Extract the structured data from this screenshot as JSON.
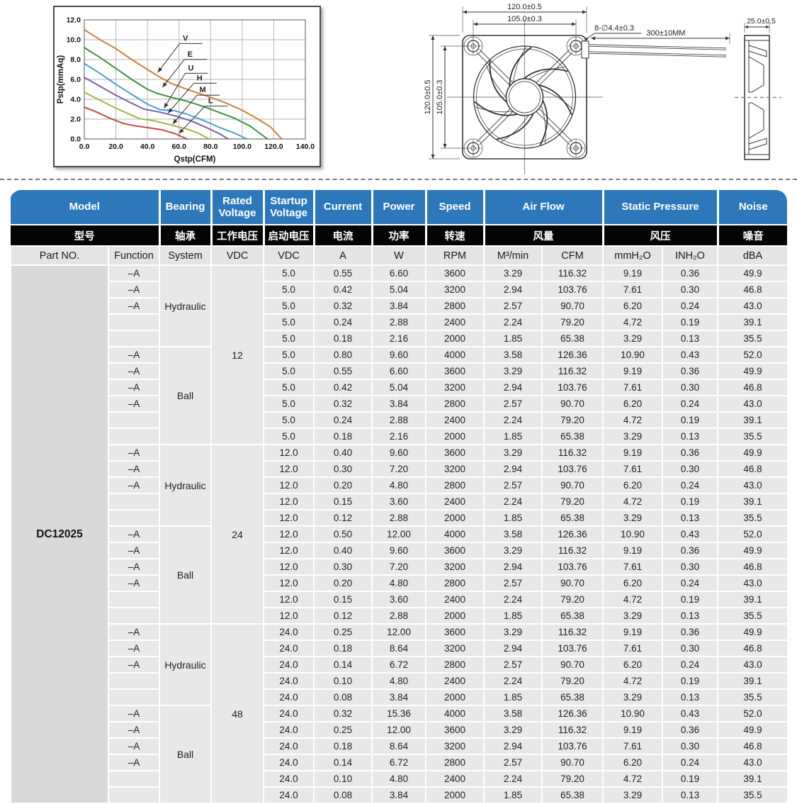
{
  "chart_data": {
    "type": "line",
    "title": "",
    "xlabel": "Qstp(CFM)",
    "ylabel": "Pstp(mmAq)",
    "xlim": [
      0,
      140
    ],
    "ylim": [
      0,
      12
    ],
    "grid": true,
    "xticks": [
      "0.0",
      "20.0",
      "40.0",
      "60.0",
      "80.0",
      "100.0",
      "120.0",
      "140.0"
    ],
    "yticks": [
      "0.0",
      "2.0",
      "4.0",
      "6.0",
      "8.0",
      "10.0",
      "12.0"
    ],
    "series": [
      {
        "name": "V",
        "color": "#d07f3a",
        "points": [
          [
            0,
            11.0
          ],
          [
            10,
            10.0
          ],
          [
            20,
            9.1
          ],
          [
            30,
            8.0
          ],
          [
            40,
            7.0
          ],
          [
            47,
            6.3
          ],
          [
            55,
            5.6
          ],
          [
            65,
            5.0
          ],
          [
            80,
            4.2
          ],
          [
            90,
            3.6
          ],
          [
            100,
            2.9
          ],
          [
            110,
            2.0
          ],
          [
            118,
            1.2
          ],
          [
            125,
            0
          ]
        ]
      },
      {
        "name": "E",
        "color": "#3f8f44",
        "points": [
          [
            0,
            9.2
          ],
          [
            10,
            8.2
          ],
          [
            20,
            7.1
          ],
          [
            30,
            6.0
          ],
          [
            40,
            5.0
          ],
          [
            46,
            4.6
          ],
          [
            55,
            4.2
          ],
          [
            65,
            3.8
          ],
          [
            75,
            3.3
          ],
          [
            85,
            2.7
          ],
          [
            95,
            2.1
          ],
          [
            105,
            1.3
          ],
          [
            116,
            0
          ]
        ]
      },
      {
        "name": "U",
        "color": "#4aa0d6",
        "points": [
          [
            0,
            7.6
          ],
          [
            10,
            6.6
          ],
          [
            20,
            5.5
          ],
          [
            30,
            4.5
          ],
          [
            40,
            3.5
          ],
          [
            48,
            2.95
          ],
          [
            57,
            2.85
          ],
          [
            65,
            2.5
          ],
          [
            75,
            1.9
          ],
          [
            85,
            1.2
          ],
          [
            95,
            0.6
          ],
          [
            103,
            0
          ]
        ]
      },
      {
        "name": "H",
        "color": "#7a5fa8",
        "points": [
          [
            0,
            6.2
          ],
          [
            10,
            5.3
          ],
          [
            20,
            4.4
          ],
          [
            30,
            3.6
          ],
          [
            38,
            3.0
          ],
          [
            48,
            2.7
          ],
          [
            58,
            2.3
          ],
          [
            68,
            1.8
          ],
          [
            78,
            1.1
          ],
          [
            86,
            0.5
          ],
          [
            91,
            0
          ]
        ]
      },
      {
        "name": "M",
        "color": "#a2b545",
        "points": [
          [
            0,
            4.7
          ],
          [
            10,
            3.9
          ],
          [
            20,
            3.1
          ],
          [
            30,
            2.4
          ],
          [
            35,
            2.05
          ],
          [
            45,
            1.8
          ],
          [
            55,
            1.4
          ],
          [
            65,
            1.0
          ],
          [
            72,
            0.6
          ],
          [
            79,
            0
          ]
        ]
      },
      {
        "name": "L",
        "color": "#bf4a45",
        "points": [
          [
            0,
            3.2
          ],
          [
            8,
            2.7
          ],
          [
            16,
            2.1
          ],
          [
            25,
            1.55
          ],
          [
            33,
            1.3
          ],
          [
            42,
            1.1
          ],
          [
            50,
            0.9
          ],
          [
            58,
            0.5
          ],
          [
            65,
            0
          ]
        ]
      }
    ],
    "annotations": [
      {
        "label": "V",
        "x": 64,
        "y": 9.9,
        "tx": 46.5,
        "ty": 6.7
      },
      {
        "label": "E",
        "x": 67,
        "y": 8.3,
        "tx": 49.5,
        "ty": 5.2
      },
      {
        "label": "U",
        "x": 67.5,
        "y": 6.9,
        "tx": 50.5,
        "ty": 3.1
      },
      {
        "label": "H",
        "x": 73,
        "y": 5.9,
        "tx": 53,
        "ty": 2.6
      },
      {
        "label": "M",
        "x": 75,
        "y": 4.7,
        "tx": 56,
        "ty": 1.5
      },
      {
        "label": "L",
        "x": 80,
        "y": 3.6,
        "tx": 60,
        "ty": 0.55
      }
    ]
  },
  "drawings": {
    "front_view": {
      "width_dim": "120.0±0.5",
      "holes_h_dim": "105.0±0.3",
      "height_dim": "120.0±0.5",
      "holes_v_dim": "105.0±0.3",
      "holes_label": "8-∅4.4±0.3",
      "lead_wire_dim": "300±10MM"
    },
    "side_view": {
      "depth_dim": "25.0±0.5"
    }
  },
  "table": {
    "header_en": {
      "model": "Model",
      "bearing": "Bearing",
      "rated_voltage": "Rated Voltage",
      "startup_voltage": "Startup Voltage",
      "current": "Current",
      "power": "Power",
      "speed": "Speed",
      "air_flow": "Air Flow",
      "static_pressure": "Static Pressure",
      "noise": "Noise"
    },
    "header_cn": {
      "model": "型号",
      "bearing": "轴承",
      "rated_voltage": "工作电压",
      "startup_voltage": "启动电压",
      "current": "电流",
      "power": "功率",
      "speed": "转速",
      "air_flow": "风量",
      "static_pressure": "风压",
      "noise": "噪音"
    },
    "units": {
      "part_no": "Part NO.",
      "function": "Function",
      "system": "System",
      "rated": "VDC",
      "startup": "VDC",
      "current": "A",
      "power": "W",
      "speed": "RPM",
      "m3min": "M³/min",
      "cfm": "CFM",
      "mmh2o": "mmH₂O",
      "inh2o": "INH₂O",
      "dba": "dBA"
    },
    "part_no": "DC12025",
    "groups": [
      {
        "rated_voltage": "12",
        "blocks": [
          {
            "bearing": "Hydraulic",
            "rows": [
              {
                "function": "–A",
                "startup": "5.0",
                "current": "0.55",
                "power": "6.60",
                "speed": "3600",
                "m3min": "3.29",
                "cfm": "116.32",
                "mmh2o": "9.19",
                "inh2o": "0.36",
                "dba": "49.9"
              },
              {
                "function": "–A",
                "startup": "5.0",
                "current": "0.42",
                "power": "5.04",
                "speed": "3200",
                "m3min": "2.94",
                "cfm": "103.76",
                "mmh2o": "7.61",
                "inh2o": "0.30",
                "dba": "46.8"
              },
              {
                "function": "–A",
                "startup": "5.0",
                "current": "0.32",
                "power": "3.84",
                "speed": "2800",
                "m3min": "2.57",
                "cfm": "90.70",
                "mmh2o": "6.20",
                "inh2o": "0.24",
                "dba": "43.0"
              },
              {
                "function": "",
                "startup": "5.0",
                "current": "0.24",
                "power": "2.88",
                "speed": "2400",
                "m3min": "2.24",
                "cfm": "79.20",
                "mmh2o": "4.72",
                "inh2o": "0.19",
                "dba": "39.1"
              },
              {
                "function": "",
                "startup": "5.0",
                "current": "0.18",
                "power": "2.16",
                "speed": "2000",
                "m3min": "1.85",
                "cfm": "65.38",
                "mmh2o": "3.29",
                "inh2o": "0.13",
                "dba": "35.5"
              }
            ]
          },
          {
            "bearing": "Ball",
            "rows": [
              {
                "function": "–A",
                "startup": "5.0",
                "current": "0.80",
                "power": "9.60",
                "speed": "4000",
                "m3min": "3.58",
                "cfm": "126.36",
                "mmh2o": "10.90",
                "inh2o": "0.43",
                "dba": "52.0"
              },
              {
                "function": "–A",
                "startup": "5.0",
                "current": "0.55",
                "power": "6.60",
                "speed": "3600",
                "m3min": "3.29",
                "cfm": "116.32",
                "mmh2o": "9.19",
                "inh2o": "0.36",
                "dba": "49.9"
              },
              {
                "function": "–A",
                "startup": "5.0",
                "current": "0.42",
                "power": "5.04",
                "speed": "3200",
                "m3min": "2.94",
                "cfm": "103.76",
                "mmh2o": "7.61",
                "inh2o": "0.30",
                "dba": "46.8"
              },
              {
                "function": "–A",
                "startup": "5.0",
                "current": "0.32",
                "power": "3.84",
                "speed": "2800",
                "m3min": "2.57",
                "cfm": "90.70",
                "mmh2o": "6.20",
                "inh2o": "0.24",
                "dba": "43.0"
              },
              {
                "function": "",
                "startup": "5.0",
                "current": "0.24",
                "power": "2.88",
                "speed": "2400",
                "m3min": "2.24",
                "cfm": "79.20",
                "mmh2o": "4.72",
                "inh2o": "0.19",
                "dba": "39.1"
              },
              {
                "function": "",
                "startup": "5.0",
                "current": "0.18",
                "power": "2.16",
                "speed": "2000",
                "m3min": "1.85",
                "cfm": "65.38",
                "mmh2o": "3.29",
                "inh2o": "0.13",
                "dba": "35.5"
              }
            ]
          }
        ]
      },
      {
        "rated_voltage": "24",
        "blocks": [
          {
            "bearing": "Hydraulic",
            "rows": [
              {
                "function": "–A",
                "startup": "12.0",
                "current": "0.40",
                "power": "9.60",
                "speed": "3600",
                "m3min": "3.29",
                "cfm": "116.32",
                "mmh2o": "9.19",
                "inh2o": "0.36",
                "dba": "49.9"
              },
              {
                "function": "–A",
                "startup": "12.0",
                "current": "0.30",
                "power": "7.20",
                "speed": "3200",
                "m3min": "2.94",
                "cfm": "103.76",
                "mmh2o": "7.61",
                "inh2o": "0.30",
                "dba": "46.8"
              },
              {
                "function": "–A",
                "startup": "12.0",
                "current": "0.20",
                "power": "4.80",
                "speed": "2800",
                "m3min": "2.57",
                "cfm": "90.70",
                "mmh2o": "6.20",
                "inh2o": "0.24",
                "dba": "43.0"
              },
              {
                "function": "",
                "startup": "12.0",
                "current": "0.15",
                "power": "3.60",
                "speed": "2400",
                "m3min": "2.24",
                "cfm": "79.20",
                "mmh2o": "4.72",
                "inh2o": "0.19",
                "dba": "39.1"
              },
              {
                "function": "",
                "startup": "12.0",
                "current": "0.12",
                "power": "2.88",
                "speed": "2000",
                "m3min": "1.85",
                "cfm": "65.38",
                "mmh2o": "3.29",
                "inh2o": "0.13",
                "dba": "35.5"
              }
            ]
          },
          {
            "bearing": "Ball",
            "rows": [
              {
                "function": "–A",
                "startup": "12.0",
                "current": "0.50",
                "power": "12.00",
                "speed": "4000",
                "m3min": "3.58",
                "cfm": "126.36",
                "mmh2o": "10.90",
                "inh2o": "0.43",
                "dba": "52.0"
              },
              {
                "function": "–A",
                "startup": "12.0",
                "current": "0.40",
                "power": "9.60",
                "speed": "3600",
                "m3min": "3.29",
                "cfm": "116.32",
                "mmh2o": "9.19",
                "inh2o": "0.36",
                "dba": "49.9"
              },
              {
                "function": "–A",
                "startup": "12.0",
                "current": "0.30",
                "power": "7.20",
                "speed": "3200",
                "m3min": "2.94",
                "cfm": "103.76",
                "mmh2o": "7.61",
                "inh2o": "0.30",
                "dba": "46.8"
              },
              {
                "function": "–A",
                "startup": "12.0",
                "current": "0.20",
                "power": "4.80",
                "speed": "2800",
                "m3min": "2.57",
                "cfm": "90.70",
                "mmh2o": "6.20",
                "inh2o": "0.24",
                "dba": "43.0"
              },
              {
                "function": "",
                "startup": "12.0",
                "current": "0.15",
                "power": "3.60",
                "speed": "2400",
                "m3min": "2.24",
                "cfm": "79.20",
                "mmh2o": "4.72",
                "inh2o": "0.19",
                "dba": "39.1"
              },
              {
                "function": "",
                "startup": "12.0",
                "current": "0.12",
                "power": "2.88",
                "speed": "2000",
                "m3min": "1.85",
                "cfm": "65.38",
                "mmh2o": "3.29",
                "inh2o": "0.13",
                "dba": "35.5"
              }
            ]
          }
        ]
      },
      {
        "rated_voltage": "48",
        "blocks": [
          {
            "bearing": "Hydraulic",
            "rows": [
              {
                "function": "–A",
                "startup": "24.0",
                "current": "0.25",
                "power": "12.00",
                "speed": "3600",
                "m3min": "3.29",
                "cfm": "116.32",
                "mmh2o": "9.19",
                "inh2o": "0.36",
                "dba": "49.9"
              },
              {
                "function": "–A",
                "startup": "24.0",
                "current": "0.18",
                "power": "8.64",
                "speed": "3200",
                "m3min": "2.94",
                "cfm": "103.76",
                "mmh2o": "7.61",
                "inh2o": "0.30",
                "dba": "46.8"
              },
              {
                "function": "–A",
                "startup": "24.0",
                "current": "0.14",
                "power": "6.72",
                "speed": "2800",
                "m3min": "2.57",
                "cfm": "90.70",
                "mmh2o": "6.20",
                "inh2o": "0.24",
                "dba": "43.0"
              },
              {
                "function": "",
                "startup": "24.0",
                "current": "0.10",
                "power": "4.80",
                "speed": "2400",
                "m3min": "2.24",
                "cfm": "79.20",
                "mmh2o": "4.72",
                "inh2o": "0.19",
                "dba": "39.1"
              },
              {
                "function": "",
                "startup": "24.0",
                "current": "0.08",
                "power": "3.84",
                "speed": "2000",
                "m3min": "1.85",
                "cfm": "65.38",
                "mmh2o": "3.29",
                "inh2o": "0.13",
                "dba": "35.5"
              }
            ]
          },
          {
            "bearing": "Ball",
            "rows": [
              {
                "function": "–A",
                "startup": "24.0",
                "current": "0.32",
                "power": "15.36",
                "speed": "4000",
                "m3min": "3.58",
                "cfm": "126.36",
                "mmh2o": "10.90",
                "inh2o": "0.43",
                "dba": "52.0"
              },
              {
                "function": "–A",
                "startup": "24.0",
                "current": "0.25",
                "power": "12.00",
                "speed": "3600",
                "m3min": "3.29",
                "cfm": "116.32",
                "mmh2o": "9.19",
                "inh2o": "0.36",
                "dba": "49.9"
              },
              {
                "function": "–A",
                "startup": "24.0",
                "current": "0.18",
                "power": "8.64",
                "speed": "3200",
                "m3min": "2.94",
                "cfm": "103.76",
                "mmh2o": "7.61",
                "inh2o": "0.30",
                "dba": "46.8"
              },
              {
                "function": "–A",
                "startup": "24.0",
                "current": "0.14",
                "power": "6.72",
                "speed": "2800",
                "m3min": "2.57",
                "cfm": "90.70",
                "mmh2o": "6.20",
                "inh2o": "0.24",
                "dba": "43.0"
              },
              {
                "function": "",
                "startup": "24.0",
                "current": "0.10",
                "power": "4.80",
                "speed": "2400",
                "m3min": "2.24",
                "cfm": "79.20",
                "mmh2o": "4.72",
                "inh2o": "0.19",
                "dba": "39.1"
              },
              {
                "function": "",
                "startup": "24.0",
                "current": "0.08",
                "power": "3.84",
                "speed": "2000",
                "m3min": "1.85",
                "cfm": "65.38",
                "mmh2o": "3.29",
                "inh2o": "0.13",
                "dba": "35.5"
              }
            ]
          }
        ]
      }
    ]
  }
}
